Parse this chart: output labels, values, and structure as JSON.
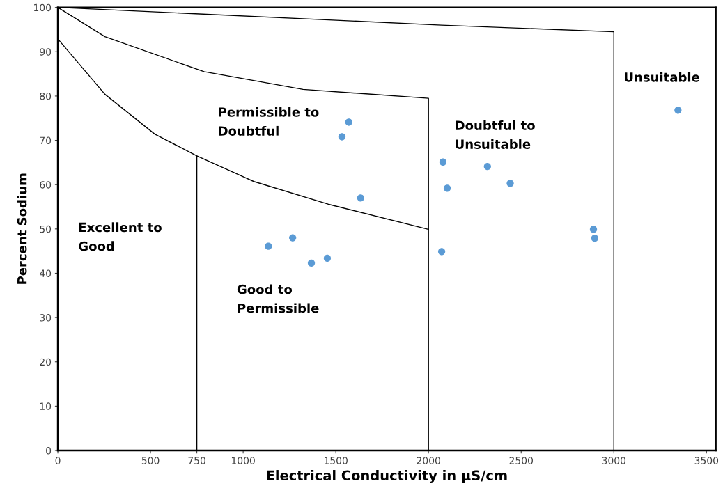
{
  "chart_data": {
    "type": "scatter",
    "xlabel": "Electrical Conductivity in µS/cm",
    "ylabel": "Percent Sodium",
    "xlim": [
      0,
      3550
    ],
    "ylim": [
      0,
      100
    ],
    "xticks": [
      0,
      500,
      750,
      1000,
      1500,
      2000,
      2500,
      3000,
      3500
    ],
    "yticks": [
      0,
      10,
      20,
      30,
      40,
      50,
      60,
      70,
      80,
      90,
      100
    ],
    "marker": "circle",
    "series": [
      {
        "color": "#5b9bd5",
        "x": [
          1136,
          1267,
          1368,
          1454,
          1533,
          1570,
          1634,
          2078,
          2101,
          2071,
          2318,
          2441,
          2890,
          2897,
          3346
        ],
        "values": [
          46.1,
          48.0,
          42.3,
          43.4,
          70.8,
          74.1,
          57.0,
          65.1,
          59.2,
          44.9,
          64.1,
          60.3,
          49.9,
          47.9,
          76.8
        ]
      },
      {
        "type": "line",
        "color": "#000000",
        "marker": "none",
        "x": [
          0,
          2071,
          3000,
          3000
        ],
        "values": [
          100,
          96.0,
          94.5,
          0
        ]
      },
      {
        "type": "line",
        "color": "#000000",
        "marker": "none",
        "x": [
          0,
          254,
          789,
          1323,
          2000,
          2000
        ],
        "values": [
          100,
          93.4,
          85.5,
          81.5,
          79.5,
          0
        ]
      },
      {
        "type": "line",
        "color": "#000000",
        "marker": "none",
        "x": [
          0,
          254,
          523,
          750,
          1058,
          1458,
          2000
        ],
        "values": [
          92.9,
          80.4,
          71.4,
          66.5,
          60.7,
          55.6,
          49.9
        ]
      },
      {
        "type": "line",
        "color": "#000000",
        "marker": "none",
        "x": [
          750,
          750
        ],
        "values": [
          0,
          66.5
        ]
      }
    ],
    "annotations": [
      "Unsuitable",
      "Permissible to\nDoubtful",
      "Doubtful to\nUnsuitable",
      "Excellent to\nGood",
      "Good to\nPermissible"
    ]
  }
}
